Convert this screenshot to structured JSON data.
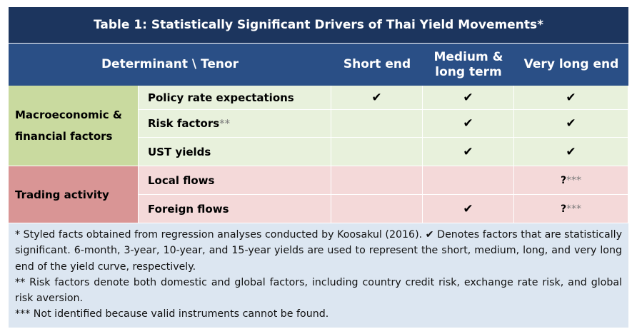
{
  "title": "Table 1: Statistically Significant Drivers of Thai Yield Movements*",
  "header": {
    "determinant": "Determinant \\ Tenor",
    "short_end": "Short end",
    "medium_line1": "Medium &",
    "medium_line2": "long term",
    "very_long_end": "Very long end"
  },
  "groups": {
    "macro_line1": "Macroeconomic &",
    "macro_line2": "financial factors",
    "trading": "Trading activity"
  },
  "rows": [
    {
      "label": "Policy rate expectations",
      "label_suffix": "",
      "short": "✔",
      "medium": "✔",
      "very_long": "✔"
    },
    {
      "label": "Risk factors",
      "label_suffix": "**",
      "short": "",
      "medium": "✔",
      "very_long": "✔"
    },
    {
      "label": "UST yields",
      "label_suffix": "",
      "short": "",
      "medium": "✔",
      "very_long": "✔"
    },
    {
      "label": "Local flows",
      "label_suffix": "",
      "short": "",
      "medium": "",
      "very_long": "?",
      "very_long_suffix": "***"
    },
    {
      "label": "Foreign flows",
      "label_suffix": "",
      "short": "",
      "medium": "✔",
      "very_long": "?",
      "very_long_suffix": "***"
    }
  ],
  "notes": {
    "n1": "* Styled facts obtained from regression analyses conducted by Koosakul (2016).  ✔ Denotes factors that are statistically significant. 6-month, 3-year, 10-year, and 15-year yields are used to represent the short, medium, long, and very long end of the yield curve, respectively.",
    "n2": "** Risk factors denote both domestic and global factors, including country credit risk, exchange rate risk, and global risk aversion.",
    "n3": "*** Not identified because valid instruments cannot be found."
  },
  "colors": {
    "title_bg": "#1c355e",
    "header_bg": "#2a4f86",
    "macro_group": "#c9da9f",
    "macro_cell": "#e8f1dc",
    "trading_group": "#d99595",
    "trading_cell": "#f4d9d9",
    "notes_bg": "#dce6f1"
  }
}
